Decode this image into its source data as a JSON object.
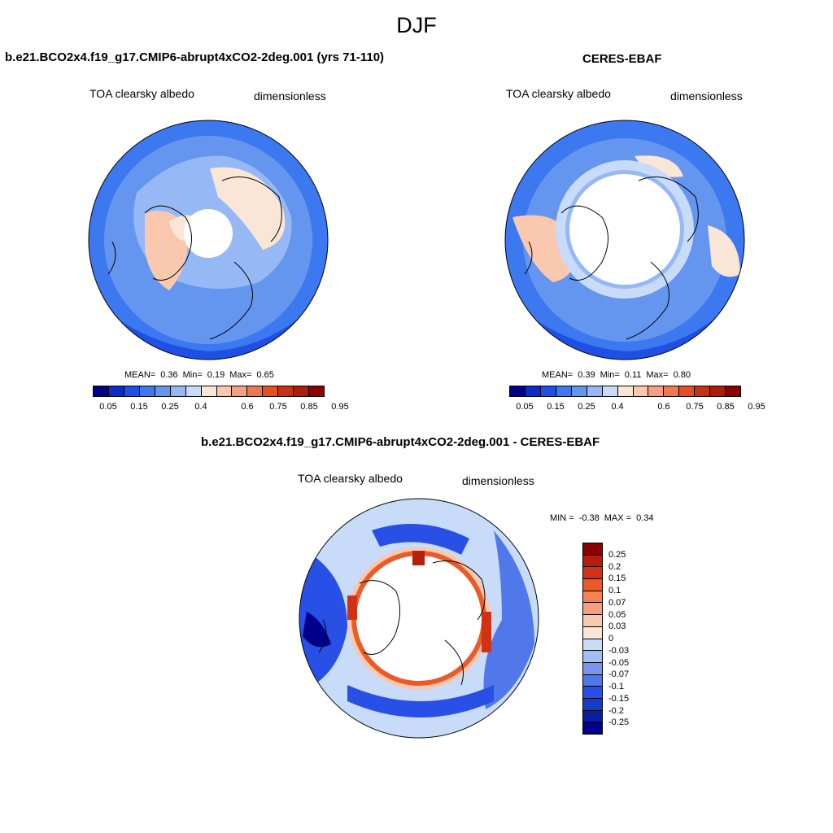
{
  "season": "DJF",
  "panels": [
    {
      "title": "b.e21.BCO2x4.f19_g17.CMIP6-abrupt4xCO2-2deg.001 (yrs 71-110)",
      "left_label": "TOA clearsky albedo",
      "right_label": "dimensionless",
      "stats": {
        "mean_label": "MEAN=",
        "mean": "0.36",
        "min_label": "Min=",
        "min": "0.19",
        "max_label": "Max=",
        "max": "0.65"
      }
    },
    {
      "title": "CERES-EBAF",
      "left_label": "TOA clearsky albedo",
      "right_label": "dimensionless",
      "stats": {
        "mean_label": "MEAN=",
        "mean": "0.39",
        "min_label": "Min=",
        "min": "0.11",
        "max_label": "Max=",
        "max": "0.80"
      }
    }
  ],
  "diff_panel": {
    "title": "b.e21.BCO2x4.f19_g17.CMIP6-abrupt4xCO2-2deg.001 - CERES-EBAF",
    "left_label": "TOA clearsky albedo",
    "right_label": "dimensionless",
    "minmax": {
      "min_label": "MIN =",
      "min": "-0.38",
      "max_label": "MAX =",
      "max": "0.34"
    }
  },
  "colorbar_main": {
    "colors": [
      "#00008b",
      "#0a2dc8",
      "#1e50e6",
      "#3c78f0",
      "#6496f0",
      "#96b9f5",
      "#c8dcfa",
      "#fae6d7",
      "#fac8af",
      "#f5a082",
      "#f07850",
      "#e6501e",
      "#c83214",
      "#aa1e0a",
      "#8c0000"
    ],
    "ticks": [
      "0.05",
      "0.15",
      "0.25",
      "0.4",
      "0.6",
      "0.75",
      "0.85",
      "0.95"
    ]
  },
  "colorbar_diff": {
    "colors": [
      "#8c0000",
      "#b41e0a",
      "#d23214",
      "#eb5a28",
      "#f58250",
      "#f5a082",
      "#fac8af",
      "#fae6d7",
      "#c8dcfa",
      "#a0bef5",
      "#7896f0",
      "#5078eb",
      "#2850e6",
      "#143cc8",
      "#0a1ea0",
      "#00008b"
    ],
    "ticks": [
      "0.25",
      "0.2",
      "0.15",
      "0.1",
      "0.07",
      "0.05",
      "0.03",
      "0",
      "-0.03",
      "-0.05",
      "-0.07",
      "-0.1",
      "-0.15",
      "-0.2",
      "-0.25"
    ]
  }
}
